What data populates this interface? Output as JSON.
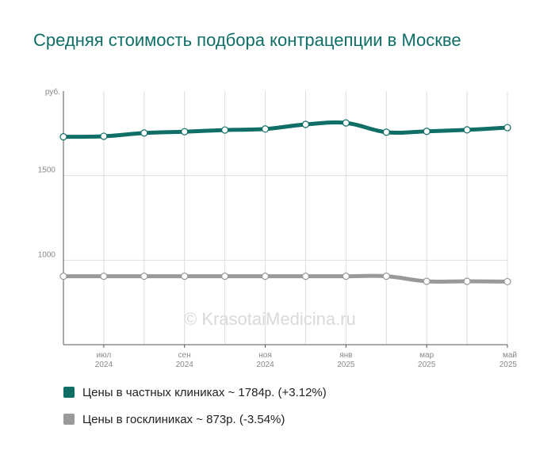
{
  "title": "Средняя стоимость подбора контрацепции в Москве",
  "watermark": "© KrasotaiMedicina.ru",
  "colors": {
    "private": "#0f6e66",
    "public": "#999999",
    "grid": "#dddddd",
    "axis": "#555555",
    "tick_text": "#888888"
  },
  "legend": [
    {
      "label": "Цены в частных клиниках ~ 1784р. (+3.12%)",
      "color": "#0f6e66"
    },
    {
      "label": "Цены в госклиниках ~ 873р. (-3.54%)",
      "color": "#999999"
    }
  ],
  "chart_data": {
    "type": "line",
    "title": "Средняя стоимость подбора контрацепции в Москве",
    "ylabel": "руб.",
    "ylim": [
      500,
      2000
    ],
    "y_ticks": [
      1500,
      1000
    ],
    "x": [
      "2024-06",
      "2024-07",
      "2024-08",
      "2024-09",
      "2024-10",
      "2024-11",
      "2024-12",
      "2025-01",
      "2025-02",
      "2025-03",
      "2025-04",
      "2025-05"
    ],
    "x_tick_labels": [
      {
        "x": "2024-07",
        "month": "июл",
        "year": "2024"
      },
      {
        "x": "2024-09",
        "month": "сен",
        "year": "2024"
      },
      {
        "x": "2024-11",
        "month": "ноя",
        "year": "2024"
      },
      {
        "x": "2025-01",
        "month": "янв",
        "year": "2025"
      },
      {
        "x": "2025-03",
        "month": "мар",
        "year": "2025"
      },
      {
        "x": "2025-05",
        "month": "май",
        "year": "2025"
      }
    ],
    "series": [
      {
        "name": "Цены в частных клиниках ~ 1784р. (+3.12%)",
        "color": "#0f6e66",
        "values": [
          1730,
          1733,
          1752,
          1760,
          1770,
          1776,
          1803,
          1812,
          1757,
          1762,
          1771,
          1784
        ]
      },
      {
        "name": "Цены в госклиниках ~ 873р. (-3.54%)",
        "color": "#999999",
        "values": [
          905,
          905,
          905,
          905,
          905,
          905,
          905,
          905,
          905,
          875,
          875,
          873
        ]
      }
    ],
    "grid": true,
    "legend_position": "bottom-left"
  }
}
